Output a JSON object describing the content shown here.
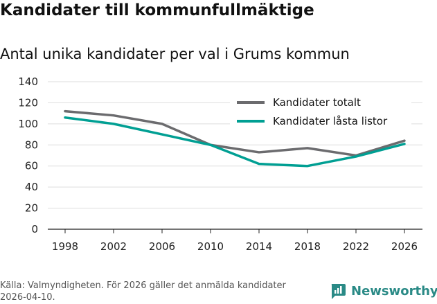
{
  "title": "Kandidater till kommunfullmäktige",
  "subtitle": "Antal unika kandidater per val i Grums kommun",
  "source": "Källa: Valmyndigheten. För 2026 gäller det anmälda kandidater 2026-04-10.",
  "brand": "Newsworthy",
  "colors": {
    "total": "#6b6b6e",
    "locked": "#009f93",
    "grid": "#dddddd",
    "brand": "#2a8a86"
  },
  "chart_data": {
    "type": "line",
    "x": [
      "1998",
      "2002",
      "2006",
      "2010",
      "2014",
      "2018",
      "2022",
      "2026"
    ],
    "series": [
      {
        "name": "Kandidater totalt",
        "values": [
          112,
          108,
          100,
          80,
          73,
          77,
          70,
          84
        ]
      },
      {
        "name": "Kandidater låsta listor",
        "values": [
          106,
          100,
          90,
          80,
          62,
          60,
          69,
          81
        ]
      }
    ],
    "yticks": [
      "0",
      "20",
      "40",
      "60",
      "80",
      "100",
      "120",
      "140"
    ],
    "ylim": [
      0,
      140
    ],
    "legend": "top-right"
  }
}
